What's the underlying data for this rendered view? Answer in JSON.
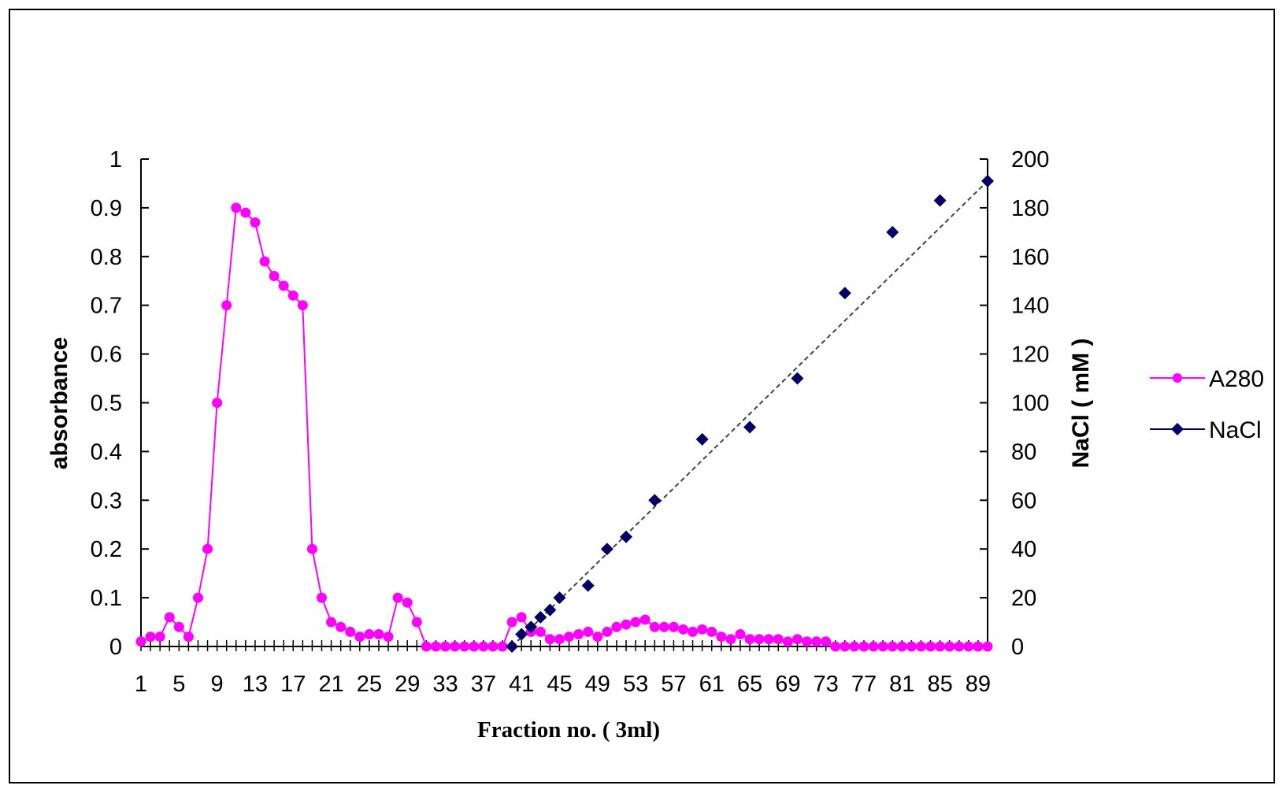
{
  "chart_data": {
    "type": "line",
    "title": "",
    "xlabel": "Fraction no. ( 3ml)",
    "ylabel_left": "absorbance",
    "ylabel_right": "NaCl ( mM )",
    "x_tick_labels": [
      "1",
      "5",
      "9",
      "13",
      "17",
      "21",
      "25",
      "29",
      "33",
      "37",
      "41",
      "45",
      "49",
      "53",
      "57",
      "61",
      "65",
      "69",
      "73",
      "77",
      "81",
      "85",
      "89"
    ],
    "xlim": [
      1,
      90
    ],
    "ylim_left": [
      0,
      1
    ],
    "y_left_ticks": [
      "0",
      "0.1",
      "0.2",
      "0.3",
      "0.4",
      "0.5",
      "0.6",
      "0.7",
      "0.8",
      "0.9",
      "1"
    ],
    "ylim_right": [
      0,
      200
    ],
    "y_right_ticks": [
      "0",
      "20",
      "40",
      "60",
      "80",
      "100",
      "120",
      "140",
      "160",
      "180",
      "200"
    ],
    "grid": false,
    "legend_position": "right",
    "series": [
      {
        "name": "A280",
        "axis": "left",
        "color": "#ff00ff",
        "marker": "circle",
        "x": [
          1,
          2,
          3,
          4,
          5,
          6,
          7,
          8,
          9,
          10,
          11,
          12,
          13,
          14,
          15,
          16,
          17,
          18,
          19,
          20,
          21,
          22,
          23,
          24,
          25,
          26,
          27,
          28,
          29,
          30,
          31,
          32,
          33,
          34,
          35,
          36,
          37,
          38,
          39,
          40,
          41,
          42,
          43,
          44,
          45,
          46,
          47,
          48,
          49,
          50,
          51,
          52,
          53,
          54,
          55,
          56,
          57,
          58,
          59,
          60,
          61,
          62,
          63,
          64,
          65,
          66,
          67,
          68,
          69,
          70,
          71,
          72,
          73,
          74,
          75,
          76,
          77,
          78,
          79,
          80,
          81,
          82,
          83,
          84,
          85,
          86,
          87,
          88,
          89,
          90
        ],
        "values": [
          0.01,
          0.02,
          0.02,
          0.06,
          0.04,
          0.02,
          0.1,
          0.2,
          0.5,
          0.7,
          0.9,
          0.89,
          0.87,
          0.79,
          0.76,
          0.74,
          0.72,
          0.7,
          0.2,
          0.1,
          0.05,
          0.04,
          0.03,
          0.02,
          0.025,
          0.025,
          0.02,
          0.1,
          0.09,
          0.05,
          0,
          0,
          0,
          0,
          0,
          0,
          0,
          0,
          0,
          0.05,
          0.06,
          0.03,
          0.03,
          0.015,
          0.015,
          0.02,
          0.025,
          0.03,
          0.02,
          0.03,
          0.04,
          0.045,
          0.05,
          0.055,
          0.04,
          0.04,
          0.04,
          0.035,
          0.03,
          0.035,
          0.03,
          0.02,
          0.015,
          0.025,
          0.015,
          0.015,
          0.015,
          0.015,
          0.01,
          0.015,
          0.01,
          0.01,
          0.01,
          0,
          0,
          0,
          0,
          0,
          0,
          0,
          0,
          0,
          0,
          0,
          0,
          0,
          0,
          0,
          0,
          0
        ]
      },
      {
        "name": "NaCl",
        "axis": "right",
        "color": "#000066",
        "marker": "diamond",
        "x": [
          40,
          41,
          42,
          43,
          44,
          45,
          48,
          50,
          52,
          55,
          60,
          65,
          70,
          75,
          80,
          85,
          90
        ],
        "values": [
          0,
          5,
          8,
          12,
          15,
          20,
          25,
          40,
          45,
          60,
          85,
          90,
          110,
          145,
          170,
          183,
          191
        ],
        "trendline": {
          "style": "dashed",
          "from": [
            40,
            0
          ],
          "to": [
            90,
            191
          ]
        }
      }
    ]
  }
}
